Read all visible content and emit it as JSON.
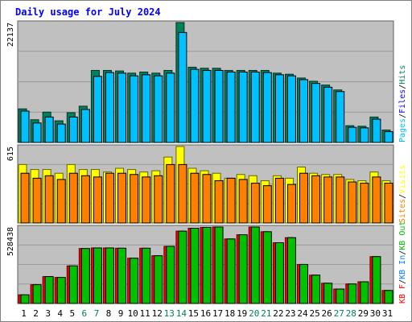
{
  "chart_data": {
    "type": "bar",
    "title": "Daily usage for July 2024",
    "x": [
      "1",
      "2",
      "3",
      "4",
      "5",
      "6",
      "7",
      "8",
      "9",
      "10",
      "11",
      "12",
      "13",
      "14",
      "15",
      "16",
      "17",
      "18",
      "19",
      "20",
      "21",
      "22",
      "23",
      "24",
      "25",
      "26",
      "27",
      "28",
      "29",
      "30",
      "31"
    ],
    "weekend_days": [
      "6",
      "7",
      "13",
      "14",
      "20",
      "21",
      "27",
      "28"
    ],
    "colors": {
      "hits": "#00805c",
      "files": "#0000ff",
      "pages": "#00c0ff",
      "visits": "#ffff00",
      "sites": "#ff8000",
      "kb_f": "#ff0000",
      "kb_in": "#0080ff",
      "kb_out": "#00c000",
      "background": "#c0c0c0",
      "title": "#0000ff",
      "weekend_tick": "#00805c"
    },
    "panels": [
      {
        "id": "requests",
        "max_label": "22137",
        "ylim": [
          0,
          22137
        ],
        "legend": [
          {
            "text": "Pages",
            "color": "#00c0ff"
          },
          {
            "text": "Files",
            "color": "#0000ff"
          },
          {
            "text": "Hits",
            "color": "#00805c"
          }
        ],
        "separator": "/",
        "series": [
          {
            "name": "Hits",
            "color": "#00805c",
            "values": [
              6200,
              4200,
              5600,
              4000,
              5500,
              6700,
              13300,
              13300,
              13200,
              12800,
              13000,
              12800,
              13300,
              22137,
              13900,
              13700,
              13700,
              13300,
              13300,
              13300,
              13300,
              12800,
              12600,
              11900,
              11300,
              10600,
              9700,
              3100,
              3000,
              4700,
              2300
            ]
          },
          {
            "name": "Pages",
            "color": "#00c0ff",
            "values": [
              5800,
              3600,
              4700,
              3400,
              4700,
              6100,
              12200,
              12900,
              12800,
              12300,
              12500,
              12300,
              12800,
              20300,
              13500,
              13300,
              13300,
              13000,
              13000,
              13000,
              12900,
              12500,
              12300,
              11600,
              10900,
              10200,
              9400,
              2800,
              2700,
              4300,
              2000
            ]
          }
        ]
      },
      {
        "id": "visits",
        "max_label": "615",
        "ylim": [
          0,
          615
        ],
        "legend": [
          {
            "text": "Sites",
            "color": "#ff8000"
          },
          {
            "text": "Visits",
            "color": "#ffff00"
          }
        ],
        "separator": "/",
        "series": [
          {
            "name": "Visits",
            "color": "#ffff00",
            "values": [
              470,
              430,
              430,
              400,
              470,
              430,
              430,
              410,
              440,
              430,
              410,
              420,
              530,
              615,
              440,
              420,
              400,
              360,
              390,
              380,
              340,
              380,
              360,
              450,
              400,
              390,
              390,
              350,
              340,
              410,
              340
            ]
          },
          {
            "name": "Sites",
            "color": "#ff8000",
            "values": [
              400,
              360,
              380,
              350,
              400,
              380,
              370,
              400,
              400,
              390,
              370,
              380,
              470,
              470,
              400,
              390,
              340,
              360,
              350,
              320,
              300,
              360,
              310,
              400,
              380,
              370,
              370,
              330,
              320,
              370,
              320
            ]
          }
        ]
      },
      {
        "id": "kbytes",
        "max_label": "528438",
        "ylim": [
          0,
          528438
        ],
        "legend": [
          {
            "text": "KB F",
            "color": "#ff0000"
          },
          {
            "text": "KB In",
            "color": "#0080ff"
          },
          {
            "text": "KB Out",
            "color": "#00c000"
          }
        ],
        "separator": "/",
        "series": [
          {
            "name": "KB F",
            "color": "#ff0000",
            "values": [
              60000,
              130000,
              186000,
              180000,
              260000,
              380000,
              384000,
              384000,
              382000,
              313000,
              382000,
              330000,
              395000,
              500000,
              520000,
              526000,
              528438,
              446000,
              475000,
              528438,
              496000,
              420000,
              455000,
              270000,
              196000,
              140000,
              100000,
              135000,
              150000,
              324000,
              90000
            ]
          },
          {
            "name": "KB Out",
            "color": "#00c000",
            "values": [
              60000,
              130000,
              186000,
              180000,
              260000,
              380000,
              384000,
              384000,
              382000,
              313000,
              382000,
              330000,
              395000,
              500000,
              520000,
              526000,
              528438,
              446000,
              475000,
              528438,
              496000,
              420000,
              455000,
              270000,
              196000,
              140000,
              100000,
              135000,
              150000,
              324000,
              90000
            ]
          }
        ]
      }
    ]
  }
}
